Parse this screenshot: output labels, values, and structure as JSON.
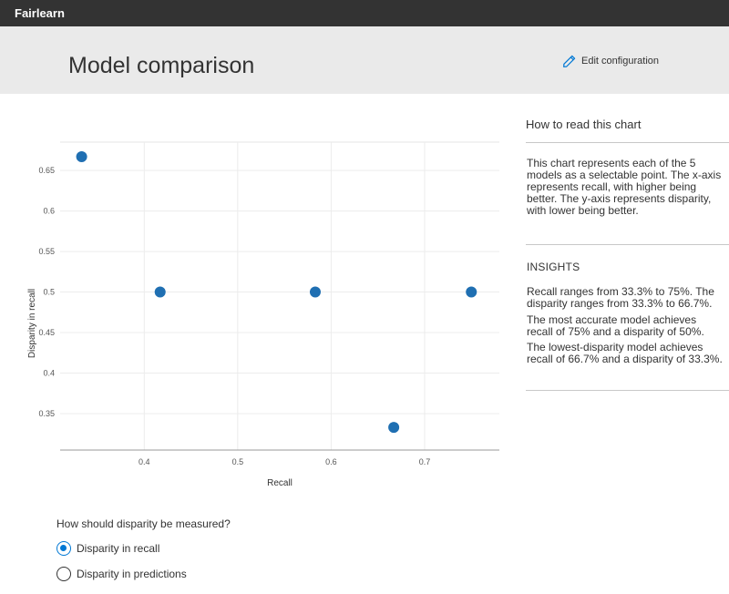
{
  "app": {
    "brand": "Fairlearn"
  },
  "header": {
    "title": "Model comparison",
    "edit_label": "Edit configuration"
  },
  "chart_data": {
    "type": "scatter",
    "xlabel": "Recall",
    "ylabel": "Disparity in recall",
    "xlim": [
      0.31,
      0.78
    ],
    "ylim": [
      0.305,
      0.685
    ],
    "x_ticks": [
      "0.4",
      "0.5",
      "0.6",
      "0.7"
    ],
    "y_ticks": [
      "0.35",
      "0.4",
      "0.45",
      "0.5",
      "0.55",
      "0.6",
      "0.65"
    ],
    "x_tick_values": [
      0.4,
      0.5,
      0.6,
      0.7
    ],
    "y_tick_values": [
      0.35,
      0.4,
      0.45,
      0.5,
      0.55,
      0.6,
      0.65
    ],
    "grid": true,
    "point_color": "#1f6fb2",
    "points": [
      {
        "x": 0.333,
        "y": 0.667
      },
      {
        "x": 0.417,
        "y": 0.5
      },
      {
        "x": 0.583,
        "y": 0.5
      },
      {
        "x": 0.667,
        "y": 0.333
      },
      {
        "x": 0.75,
        "y": 0.5
      }
    ]
  },
  "panel": {
    "how_title": "How to read this chart",
    "how_text": "This chart represents each of the 5 models as a selectable point. The x-axis represents recall, with higher being better. The y-axis represents disparity, with lower being better.",
    "insights_title": "INSIGHTS",
    "insight_1": "Recall ranges from 33.3% to 75%. The disparity ranges from 33.3% to 66.7%.",
    "insight_2": "The most accurate model achieves recall of 75% and a disparity of 50%.",
    "insight_3": "The lowest-disparity model achieves recall of 66.7% and a disparity of 33.3%."
  },
  "disparity": {
    "question": "How should disparity be measured?",
    "options": [
      {
        "label": "Disparity in recall",
        "selected": true
      },
      {
        "label": "Disparity in predictions",
        "selected": false
      }
    ]
  }
}
